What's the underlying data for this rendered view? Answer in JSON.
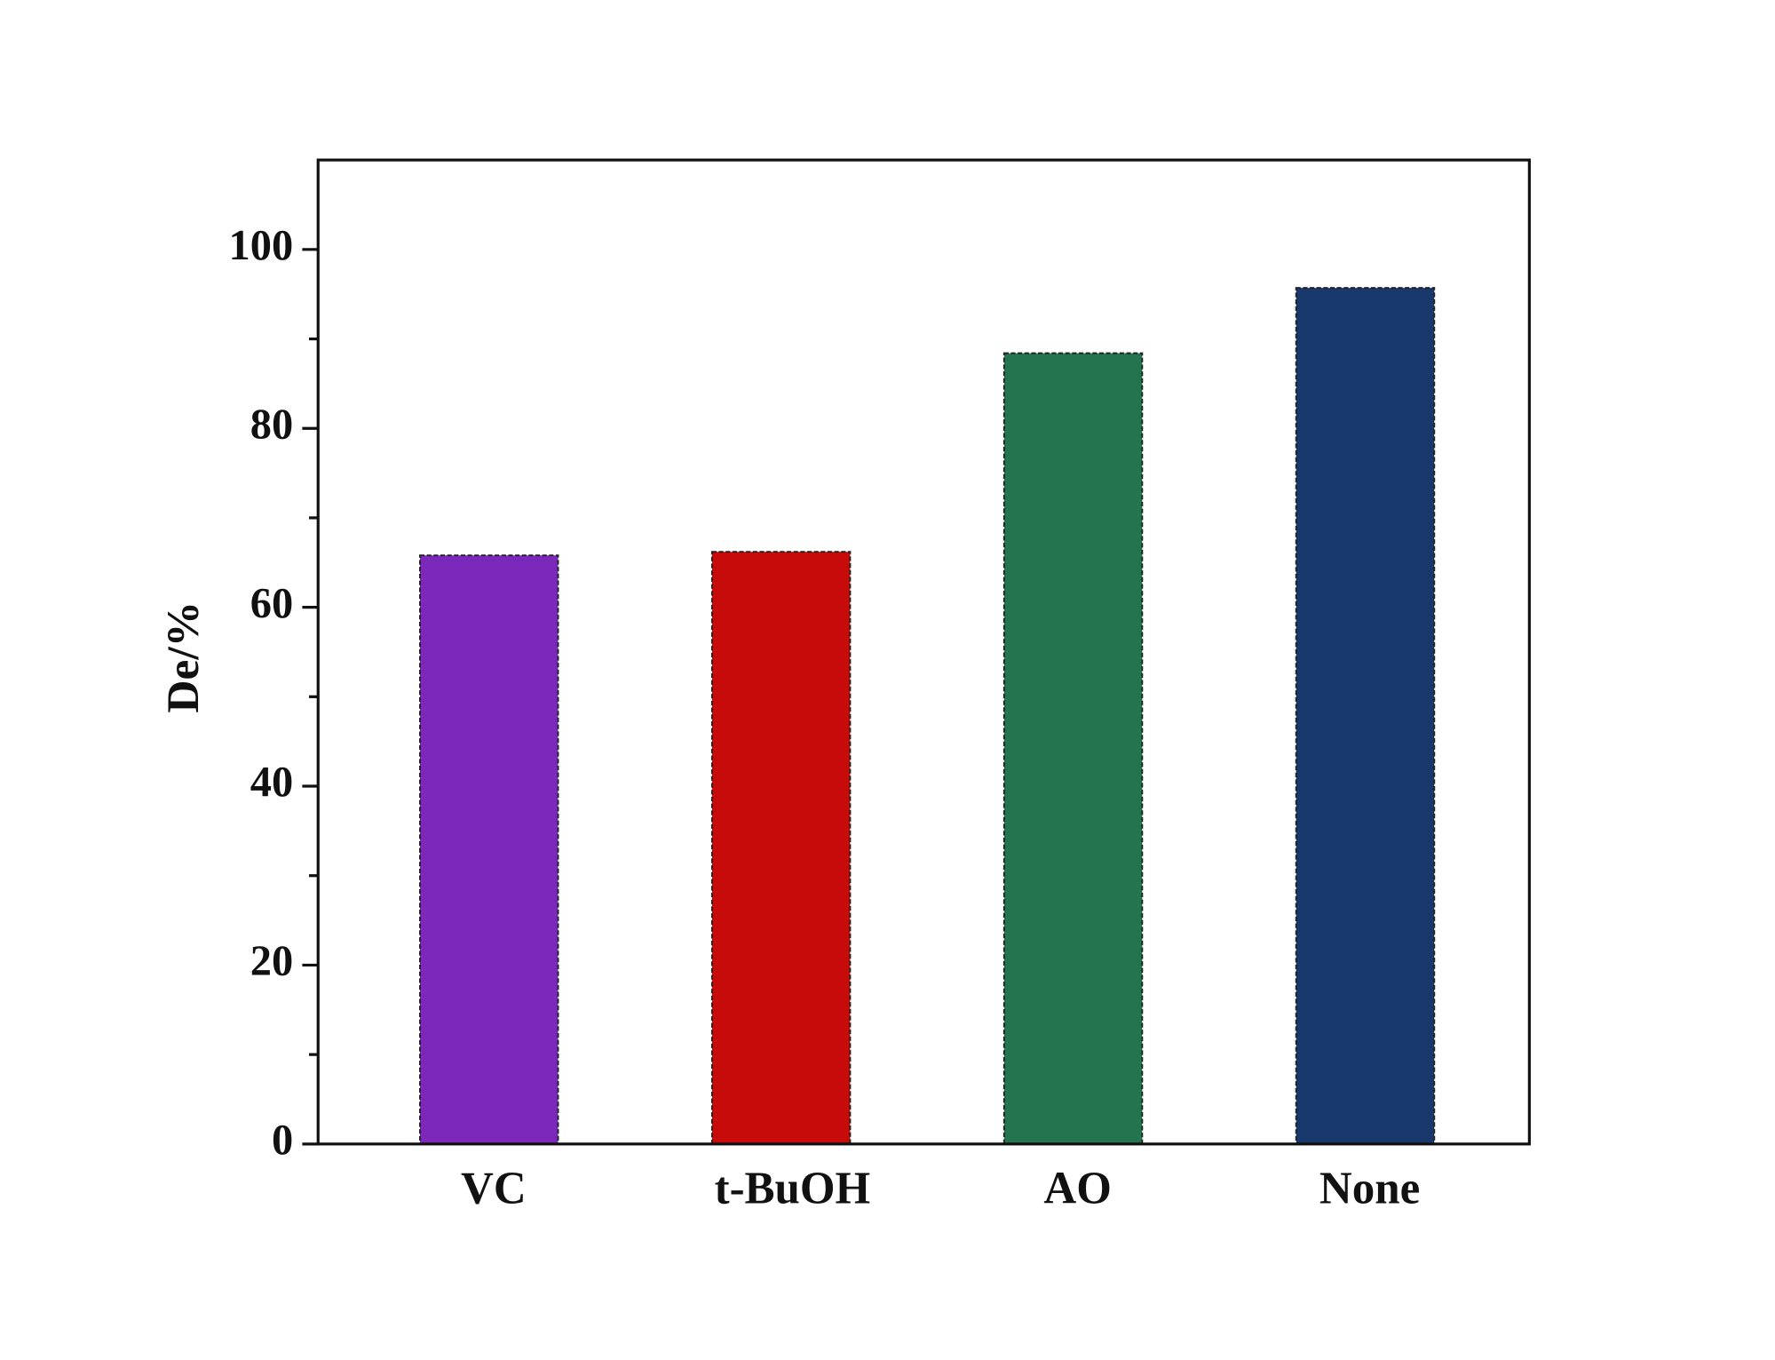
{
  "chart_data": {
    "type": "bar",
    "y_label": "De/%",
    "categories": [
      "VC",
      "t-BuOH",
      "AO",
      "None"
    ],
    "values": [
      65.8,
      66.2,
      88.4,
      95.7
    ],
    "colors": [
      "#7b28bb",
      "#c70a0a",
      "#23744f",
      "#19386b"
    ],
    "ylim": [
      0,
      110
    ],
    "yticks": [
      0,
      20,
      40,
      60,
      80,
      100
    ],
    "yticks_minor": [
      10,
      30,
      50,
      70,
      90
    ],
    "grid": false
  }
}
